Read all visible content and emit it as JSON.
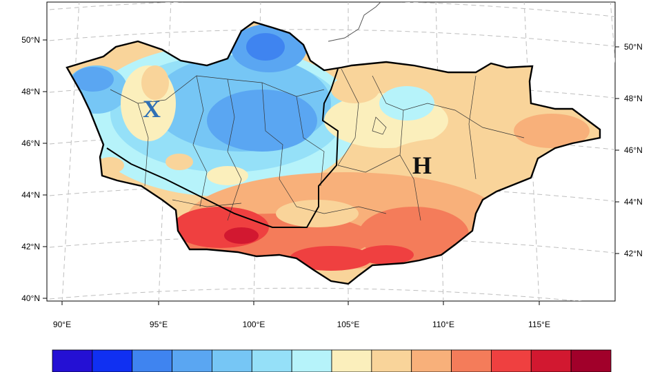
{
  "map": {
    "lat_labels_left": [
      "50°N",
      "48°N",
      "46°N",
      "44°N",
      "42°N",
      "40°N"
    ],
    "lat_labels_right": [
      "50°N",
      "48°N",
      "46°N",
      "44°N",
      "42°N"
    ],
    "lon_labels": [
      "90°E",
      "95°E",
      "100°E",
      "105°E",
      "110°E",
      "115°E"
    ],
    "markers": {
      "cold_region": {
        "label": "X",
        "color": "#2f6fb5"
      },
      "warm_region": {
        "label": "H",
        "color": "#111111"
      }
    },
    "colorbar": {
      "colors": [
        "#2410d4",
        "#1030f2",
        "#3f84f0",
        "#5aa6f2",
        "#76c6f5",
        "#95e0f8",
        "#b6f3fa",
        "#fbefbc",
        "#f9d49a",
        "#f8b07a",
        "#f47c5a",
        "#ef4040",
        "#d21830",
        "#a1002a"
      ]
    }
  }
}
